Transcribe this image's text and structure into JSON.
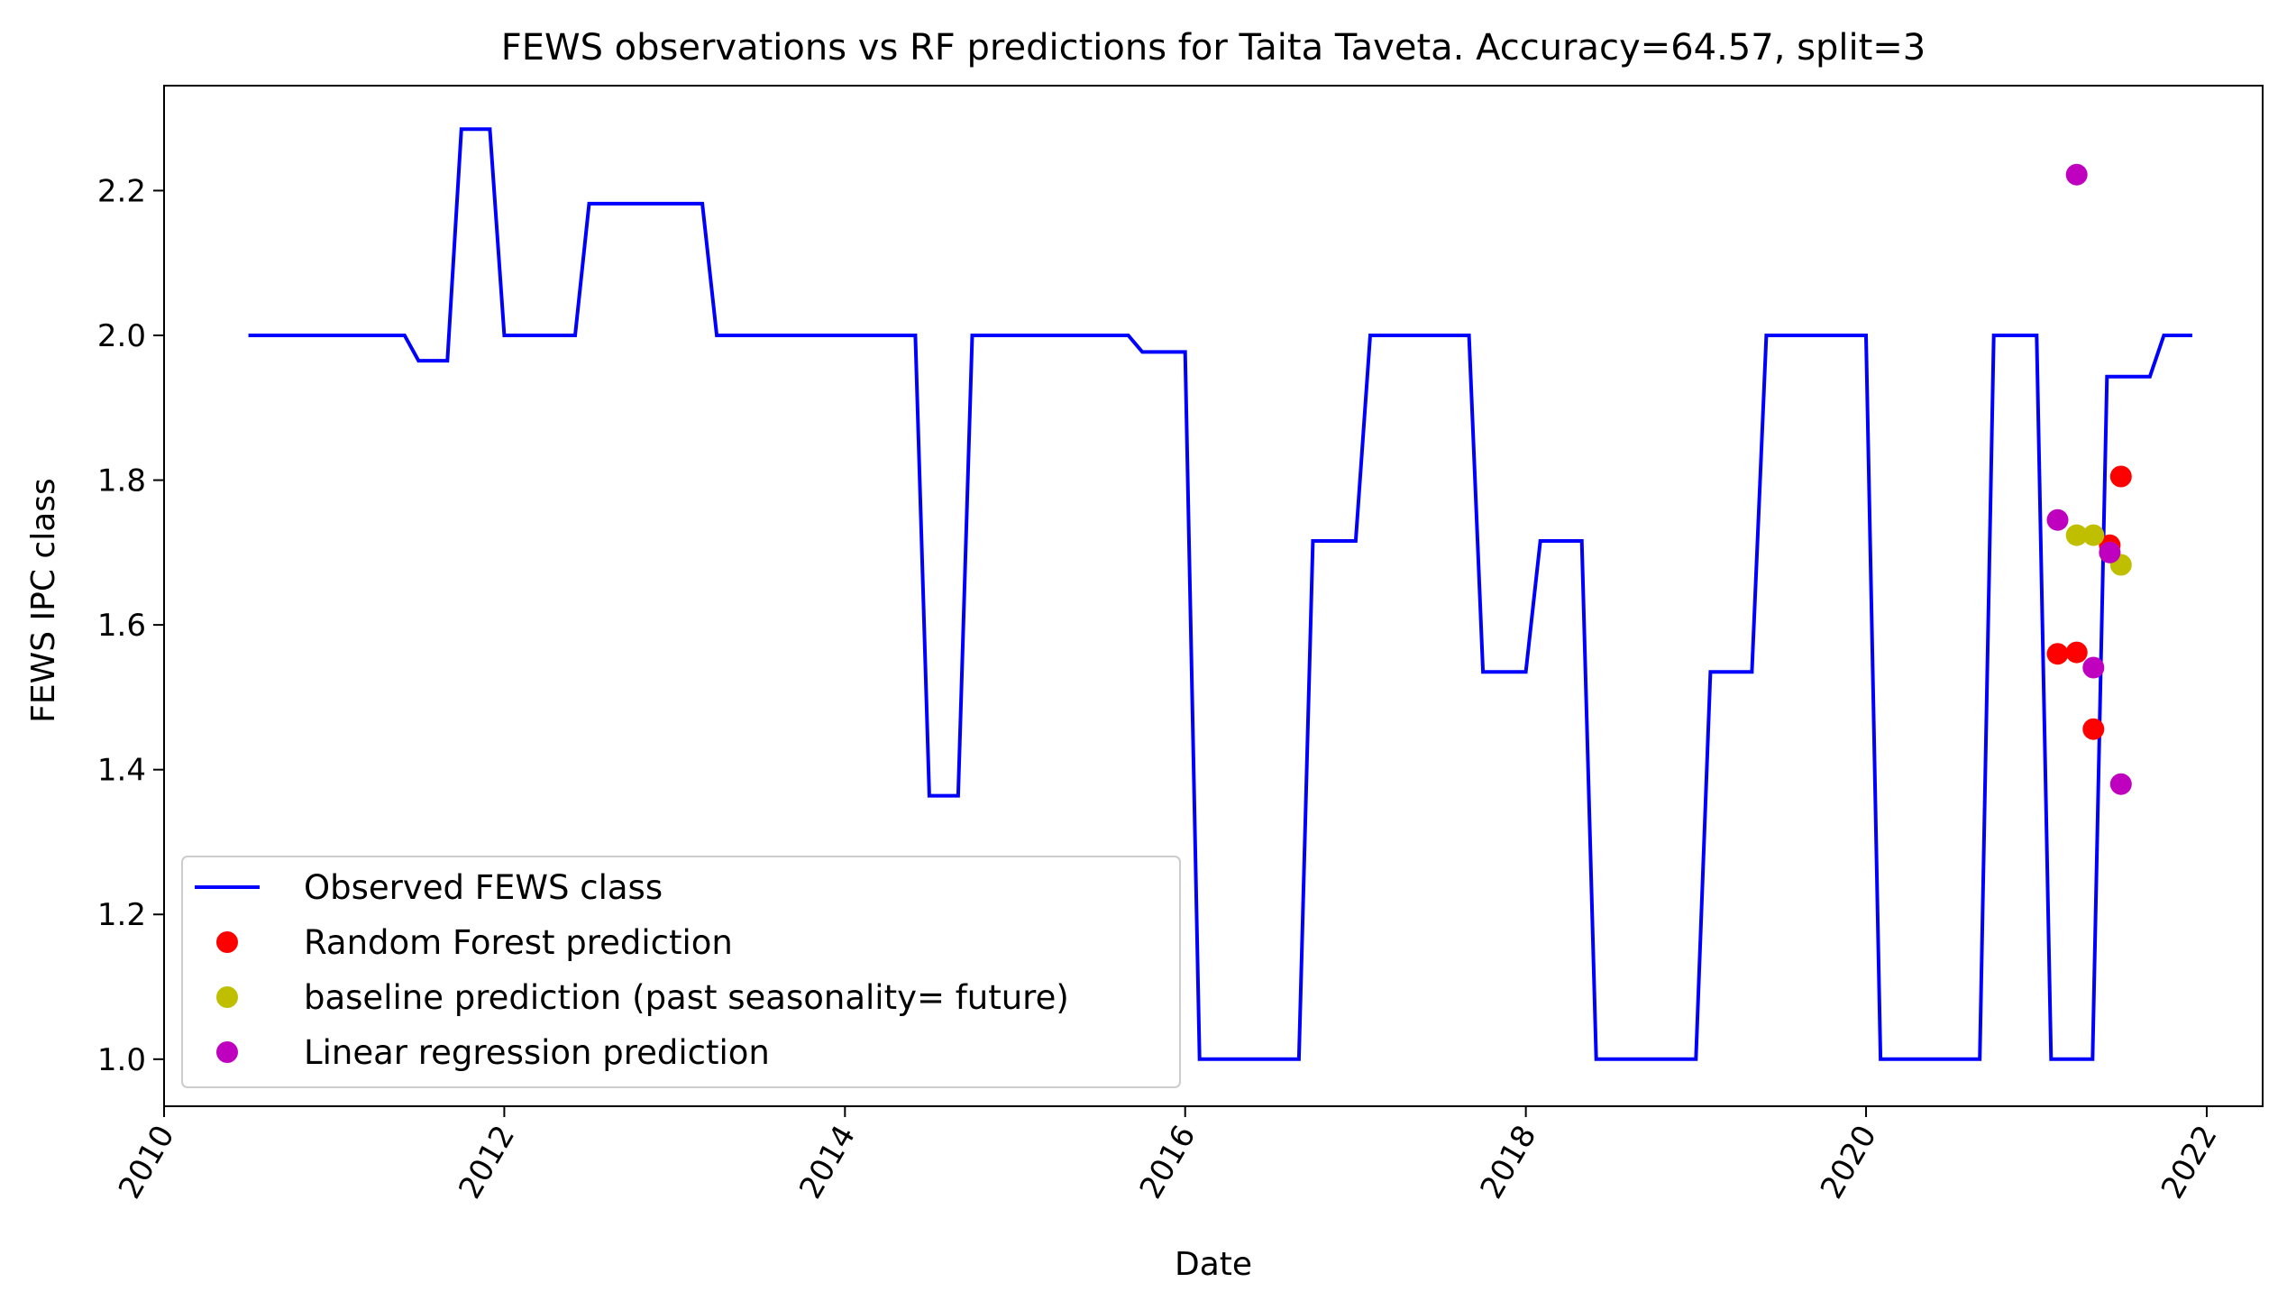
{
  "chart_data": {
    "type": "line",
    "title": "FEWS observations vs RF predictions for Taita Taveta. Accuracy=64.57, split=3",
    "xlabel": "Date",
    "ylabel": "FEWS IPC class",
    "xlim": [
      "2010-01-01",
      "2022-05-01"
    ],
    "ylim": [
      0.935,
      2.345
    ],
    "x_ticks": [
      "2010",
      "2012",
      "2014",
      "2016",
      "2018",
      "2020",
      "2022"
    ],
    "y_ticks": [
      "1.0",
      "1.2",
      "1.4",
      "1.6",
      "1.8",
      "2.0",
      "2.2"
    ],
    "grid": false,
    "legend": {
      "position": "lower-left",
      "entries": [
        {
          "label": "Observed FEWS class",
          "marker": "line",
          "color": "#0000ff"
        },
        {
          "label": "Random Forest prediction",
          "marker": "dot",
          "color": "#ff0000"
        },
        {
          "label": "baseline prediction (past seasonality= future)",
          "marker": "dot",
          "color": "#bfbf00"
        },
        {
          "label": "Linear regression prediction",
          "marker": "dot",
          "color": "#bf00bf"
        }
      ]
    },
    "series": [
      {
        "name": "Observed FEWS class",
        "kind": "line",
        "color": "#0000ff",
        "points": [
          [
            "2010-07-01",
            2.0
          ],
          [
            "2011-06-01",
            2.0
          ],
          [
            "2011-07-01",
            1.965
          ],
          [
            "2011-09-01",
            1.965
          ],
          [
            "2011-10-01",
            2.285
          ],
          [
            "2011-12-01",
            2.285
          ],
          [
            "2012-01-01",
            2.0
          ],
          [
            "2012-06-01",
            2.0
          ],
          [
            "2012-07-01",
            2.182
          ],
          [
            "2013-03-01",
            2.182
          ],
          [
            "2013-04-01",
            2.0
          ],
          [
            "2014-06-01",
            2.0
          ],
          [
            "2014-07-01",
            1.364
          ],
          [
            "2014-09-01",
            1.364
          ],
          [
            "2014-10-01",
            2.0
          ],
          [
            "2015-09-01",
            2.0
          ],
          [
            "2015-10-01",
            1.977
          ],
          [
            "2016-01-01",
            1.977
          ],
          [
            "2016-02-01",
            1.0
          ],
          [
            "2016-09-01",
            1.0
          ],
          [
            "2016-10-01",
            1.716
          ],
          [
            "2017-01-01",
            1.716
          ],
          [
            "2017-02-01",
            2.0
          ],
          [
            "2017-09-01",
            2.0
          ],
          [
            "2017-10-01",
            1.535
          ],
          [
            "2018-01-01",
            1.535
          ],
          [
            "2018-02-01",
            1.716
          ],
          [
            "2018-05-01",
            1.716
          ],
          [
            "2018-06-01",
            1.0
          ],
          [
            "2019-01-01",
            1.0
          ],
          [
            "2019-02-01",
            1.535
          ],
          [
            "2019-05-01",
            1.535
          ],
          [
            "2019-06-01",
            2.0
          ],
          [
            "2020-01-01",
            2.0
          ],
          [
            "2020-02-01",
            1.0
          ],
          [
            "2020-09-01",
            1.0
          ],
          [
            "2020-10-01",
            2.0
          ],
          [
            "2021-01-01",
            2.0
          ],
          [
            "2021-02-01",
            1.0
          ],
          [
            "2021-05-01",
            1.0
          ],
          [
            "2021-06-01",
            1.943
          ],
          [
            "2021-09-01",
            1.943
          ],
          [
            "2021-10-01",
            2.0
          ],
          [
            "2021-12-01",
            2.0
          ]
        ]
      },
      {
        "name": "Random Forest prediction",
        "kind": "scatter",
        "color": "#ff0000",
        "points": [
          [
            "2021-02-15",
            1.56
          ],
          [
            "2021-03-28",
            1.562
          ],
          [
            "2021-05-03",
            1.456
          ],
          [
            "2021-06-07",
            1.71
          ],
          [
            "2021-07-01",
            1.805
          ]
        ]
      },
      {
        "name": "baseline prediction (past seasonality= future)",
        "kind": "scatter",
        "color": "#bfbf00",
        "points": [
          [
            "2021-03-28",
            1.724
          ],
          [
            "2021-05-03",
            1.724
          ],
          [
            "2021-06-07",
            1.7
          ],
          [
            "2021-07-01",
            1.683
          ]
        ]
      },
      {
        "name": "Linear regression prediction",
        "kind": "scatter",
        "color": "#bf00bf",
        "points": [
          [
            "2021-02-15",
            1.745
          ],
          [
            "2021-03-28",
            2.222
          ],
          [
            "2021-05-03",
            1.541
          ],
          [
            "2021-06-07",
            1.7
          ],
          [
            "2021-07-01",
            1.38
          ]
        ]
      }
    ]
  }
}
